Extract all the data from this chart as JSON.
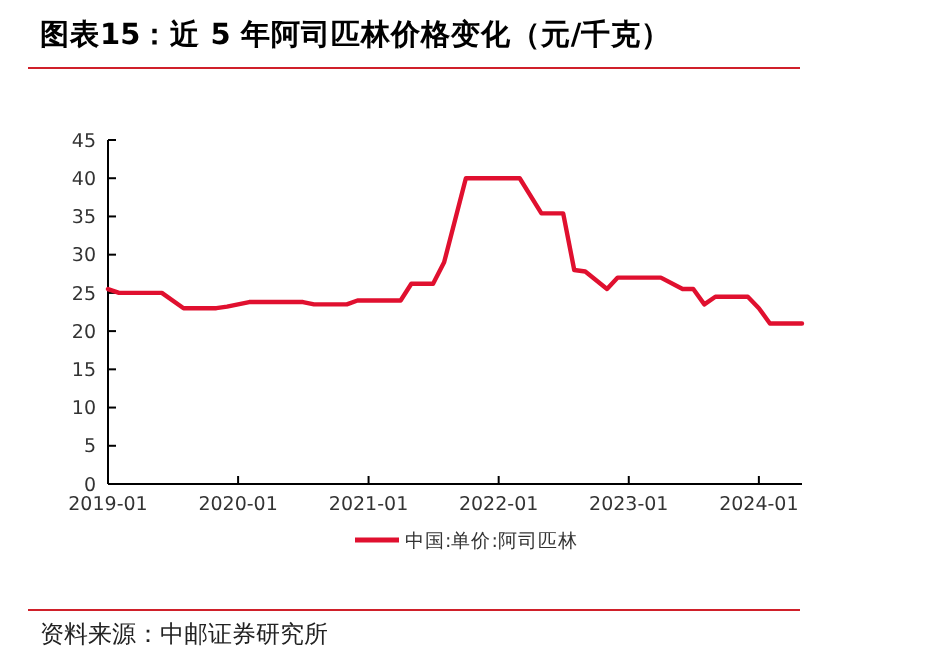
{
  "chart_data": [
    {
      "type": "line",
      "title": "图表15：近 5 年阿司匹林价格变化（元/千克）",
      "series": [
        {
          "name": "中国:单价:阿司匹林",
          "color": "#e0102f",
          "x": [
            "2019-01",
            "2019-02",
            "2019-06",
            "2019-08",
            "2019-11",
            "2019-12",
            "2020-02",
            "2020-07",
            "2020-08",
            "2020-11",
            "2020-12",
            "2021-04",
            "2021-05",
            "2021-07",
            "2021-08",
            "2021-10",
            "2022-03",
            "2022-05",
            "2022-07",
            "2022-08",
            "2022-09",
            "2022-11",
            "2022-12",
            "2023-04",
            "2023-06",
            "2023-07",
            "2023-08",
            "2023-09",
            "2023-12",
            "2024-01",
            "2024-02",
            "2024-05"
          ],
          "values": [
            25.5,
            25,
            25,
            23,
            23,
            23.2,
            23.8,
            23.8,
            23.5,
            23.5,
            24,
            24,
            26.2,
            26.2,
            29,
            40,
            40,
            35.4,
            35.4,
            28,
            27.8,
            25.5,
            27,
            27,
            25.5,
            25.5,
            23.5,
            24.5,
            24.5,
            23,
            21,
            21
          ]
        }
      ],
      "xlim": [
        "2019-01",
        "2024-05"
      ],
      "xticks": [
        "2019-01",
        "2020-01",
        "2021-01",
        "2022-01",
        "2023-01",
        "2024-01"
      ],
      "ylim": [
        0,
        45
      ],
      "yticks": [
        0,
        5,
        10,
        15,
        20,
        25,
        30,
        35,
        40,
        45
      ],
      "grid": false,
      "legend": "bottom",
      "annotations": [
        "资料来源：中邮证券研究所"
      ]
    }
  ]
}
